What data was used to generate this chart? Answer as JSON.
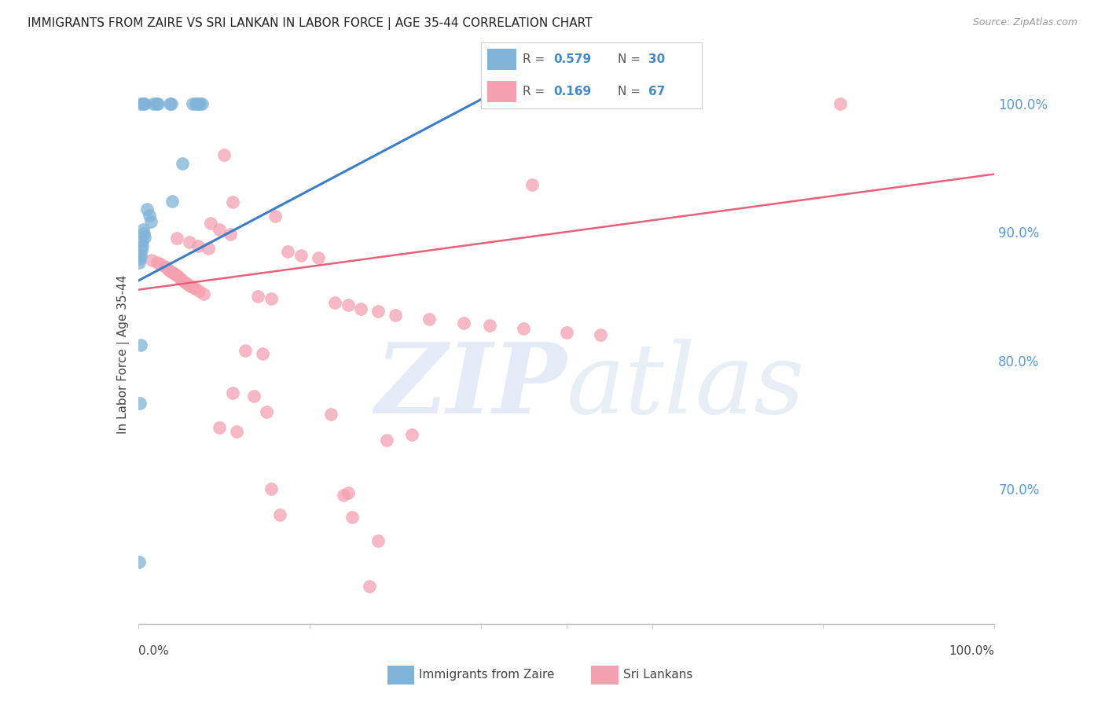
{
  "title": "IMMIGRANTS FROM ZAIRE VS SRI LANKAN IN LABOR FORCE | AGE 35-44 CORRELATION CHART",
  "source": "Source: ZipAtlas.com",
  "ylabel": "In Labor Force | Age 35-44",
  "zaire_color": "#7fb3d8",
  "srilanka_color": "#f4a0b0",
  "zaire_line_color": "#3a7dc9",
  "srilanka_line_color": "#e8607a",
  "background_color": "#ffffff",
  "grid_color": "#d8d8d8",
  "xlim": [
    0.0,
    1.0
  ],
  "ylim": [
    0.595,
    1.015
  ],
  "right_yticks": [
    0.7,
    0.8,
    0.9,
    1.0
  ],
  "right_yticklabels": [
    "70.0%",
    "80.0%",
    "90.0%",
    "100.0%"
  ],
  "title_fontsize": 11,
  "zaire_line_x": [
    0.0,
    0.42
  ],
  "zaire_line_y": [
    0.862,
    1.01
  ],
  "srilanka_line_x": [
    0.0,
    1.0
  ],
  "srilanka_line_y": [
    0.855,
    0.945
  ],
  "zaire_points": [
    [
      0.003,
      1.0
    ],
    [
      0.006,
      1.0
    ],
    [
      0.008,
      1.0
    ],
    [
      0.018,
      1.0
    ],
    [
      0.021,
      1.0
    ],
    [
      0.023,
      1.0
    ],
    [
      0.037,
      1.0
    ],
    [
      0.039,
      1.0
    ],
    [
      0.064,
      1.0
    ],
    [
      0.067,
      1.0
    ],
    [
      0.07,
      1.0
    ],
    [
      0.072,
      1.0
    ],
    [
      0.075,
      1.0
    ],
    [
      0.052,
      0.953
    ],
    [
      0.04,
      0.924
    ],
    [
      0.01,
      0.918
    ],
    [
      0.013,
      0.913
    ],
    [
      0.015,
      0.908
    ],
    [
      0.006,
      0.902
    ],
    [
      0.007,
      0.899
    ],
    [
      0.008,
      0.896
    ],
    [
      0.005,
      0.893
    ],
    [
      0.005,
      0.889
    ],
    [
      0.004,
      0.886
    ],
    [
      0.003,
      0.882
    ],
    [
      0.002,
      0.879
    ],
    [
      0.001,
      0.876
    ],
    [
      0.003,
      0.812
    ],
    [
      0.002,
      0.767
    ],
    [
      0.001,
      0.643
    ]
  ],
  "srilanka_points": [
    [
      0.82,
      1.0
    ],
    [
      0.1,
      0.96
    ],
    [
      0.46,
      0.937
    ],
    [
      0.11,
      0.923
    ],
    [
      0.16,
      0.912
    ],
    [
      0.085,
      0.907
    ],
    [
      0.095,
      0.902
    ],
    [
      0.108,
      0.898
    ],
    [
      0.045,
      0.895
    ],
    [
      0.06,
      0.892
    ],
    [
      0.07,
      0.889
    ],
    [
      0.082,
      0.887
    ],
    [
      0.175,
      0.885
    ],
    [
      0.19,
      0.882
    ],
    [
      0.21,
      0.88
    ],
    [
      0.016,
      0.878
    ],
    [
      0.022,
      0.876
    ],
    [
      0.026,
      0.875
    ],
    [
      0.031,
      0.873
    ],
    [
      0.033,
      0.872
    ],
    [
      0.036,
      0.87
    ],
    [
      0.039,
      0.869
    ],
    [
      0.041,
      0.868
    ],
    [
      0.043,
      0.867
    ],
    [
      0.046,
      0.866
    ],
    [
      0.049,
      0.864
    ],
    [
      0.051,
      0.863
    ],
    [
      0.054,
      0.861
    ],
    [
      0.057,
      0.86
    ],
    [
      0.061,
      0.858
    ],
    [
      0.064,
      0.857
    ],
    [
      0.066,
      0.856
    ],
    [
      0.071,
      0.854
    ],
    [
      0.076,
      0.852
    ],
    [
      0.14,
      0.85
    ],
    [
      0.155,
      0.848
    ],
    [
      0.23,
      0.845
    ],
    [
      0.245,
      0.843
    ],
    [
      0.26,
      0.84
    ],
    [
      0.28,
      0.838
    ],
    [
      0.3,
      0.835
    ],
    [
      0.34,
      0.832
    ],
    [
      0.38,
      0.829
    ],
    [
      0.41,
      0.827
    ],
    [
      0.45,
      0.825
    ],
    [
      0.5,
      0.822
    ],
    [
      0.54,
      0.82
    ],
    [
      0.125,
      0.808
    ],
    [
      0.145,
      0.805
    ],
    [
      0.11,
      0.775
    ],
    [
      0.135,
      0.772
    ],
    [
      0.15,
      0.76
    ],
    [
      0.225,
      0.758
    ],
    [
      0.095,
      0.748
    ],
    [
      0.115,
      0.745
    ],
    [
      0.29,
      0.738
    ],
    [
      0.32,
      0.742
    ],
    [
      0.155,
      0.7
    ],
    [
      0.245,
      0.697
    ],
    [
      0.165,
      0.68
    ],
    [
      0.25,
      0.678
    ],
    [
      0.27,
      0.624
    ],
    [
      0.24,
      0.695
    ],
    [
      0.28,
      0.66
    ]
  ]
}
